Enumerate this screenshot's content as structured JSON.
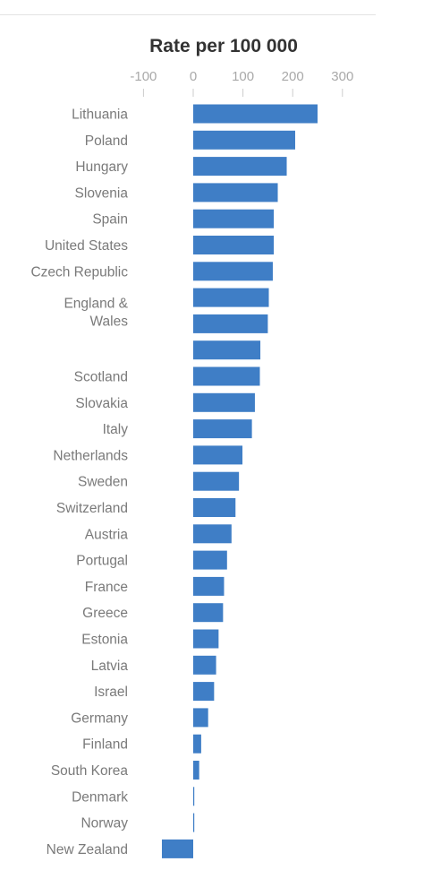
{
  "chart_data": {
    "type": "bar",
    "orientation": "horizontal",
    "title": "Rate per 100 000",
    "xlabel": "",
    "ylabel": "",
    "xlim": [
      -110,
      330
    ],
    "ticks": [
      -100,
      0,
      100,
      200,
      300
    ],
    "tick_labels": [
      "-100",
      "0",
      "100",
      "200",
      "300"
    ],
    "grid": false,
    "bar_color": "#3f7ec6",
    "categories": [
      {
        "label": "Lithuania",
        "value": 250
      },
      {
        "label": "Poland",
        "value": 205
      },
      {
        "label": "Hungary",
        "value": 188
      },
      {
        "label": "Slovenia",
        "value": 170
      },
      {
        "label": "Spain",
        "value": 162
      },
      {
        "label": "United States",
        "value": 162
      },
      {
        "label": "Czech Republic",
        "value": 160
      },
      {
        "label": "",
        "value": 152
      },
      {
        "label": "England &\nWales",
        "value": 150
      },
      {
        "label": "",
        "value": 135
      },
      {
        "label": "Scotland",
        "value": 134
      },
      {
        "label": "Slovakia",
        "value": 124
      },
      {
        "label": "Italy",
        "value": 118
      },
      {
        "label": "Netherlands",
        "value": 99
      },
      {
        "label": "Sweden",
        "value": 92
      },
      {
        "label": "Switzerland",
        "value": 85
      },
      {
        "label": "Austria",
        "value": 77
      },
      {
        "label": "Portugal",
        "value": 68
      },
      {
        "label": "France",
        "value": 62
      },
      {
        "label": "Greece",
        "value": 60
      },
      {
        "label": "Estonia",
        "value": 51
      },
      {
        "label": "Latvia",
        "value": 46
      },
      {
        "label": "Israel",
        "value": 42
      },
      {
        "label": "Germany",
        "value": 30
      },
      {
        "label": "Finland",
        "value": 16
      },
      {
        "label": "South Korea",
        "value": 12
      },
      {
        "label": "Denmark",
        "value": 1
      },
      {
        "label": "Norway",
        "value": 1
      },
      {
        "label": "New Zealand",
        "value": -63
      }
    ]
  }
}
